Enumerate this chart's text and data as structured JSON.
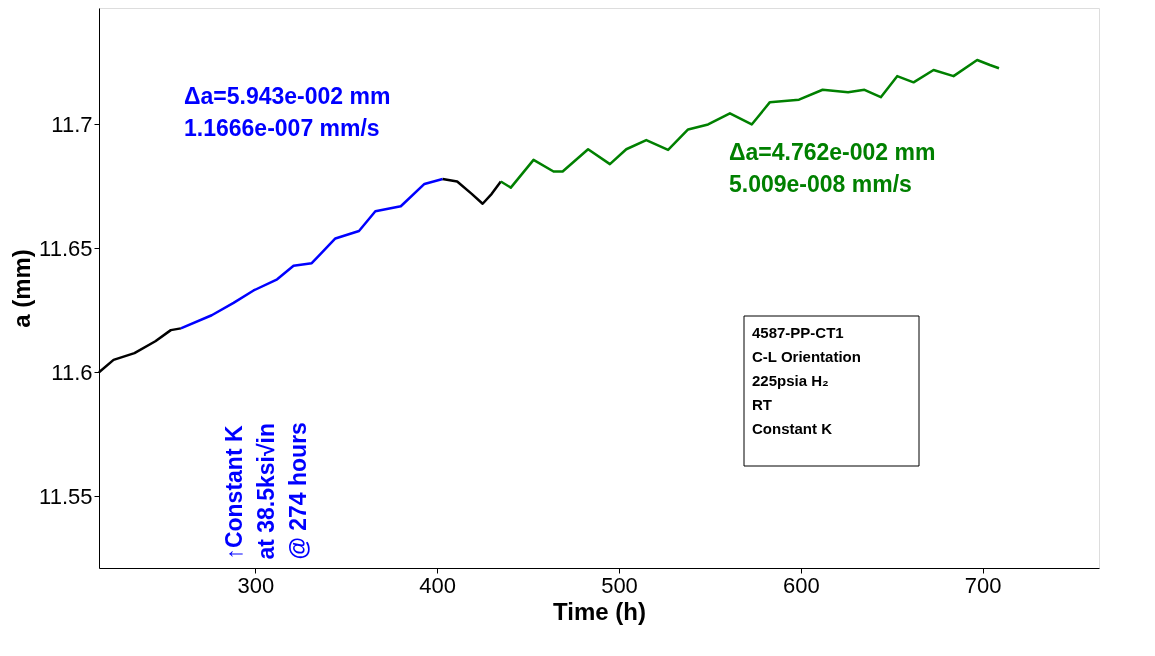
{
  "chart_data": {
    "type": "line",
    "xlabel": "Time (h)",
    "ylabel": "a (mm)",
    "xlim": [
      214,
      764
    ],
    "ylim": [
      11.521,
      11.747
    ],
    "xticks": [
      300,
      400,
      500,
      600,
      700
    ],
    "yticks": [
      11.55,
      11.6,
      11.65,
      11.7
    ],
    "grid": false,
    "legend": false,
    "line_style": "solid",
    "marker": "none",
    "series": [
      {
        "color": "#000000",
        "x": [
          214,
          222,
          233.5,
          245,
          253.5,
          259
        ],
        "values": [
          11.6,
          11.605,
          11.6077,
          11.6125,
          11.617,
          11.6177
        ]
      },
      {
        "color": "#0000ff",
        "x": [
          259,
          276,
          288,
          299,
          312,
          321,
          331,
          344,
          357,
          366,
          380,
          393,
          403
        ],
        "values": [
          11.6177,
          11.623,
          11.628,
          11.633,
          11.6375,
          11.643,
          11.644,
          11.654,
          11.657,
          11.665,
          11.667,
          11.676,
          11.678
        ]
      },
      {
        "color": "#000000",
        "x": [
          403,
          411,
          419,
          425,
          430,
          435
        ],
        "values": [
          11.678,
          11.677,
          11.672,
          11.668,
          11.672,
          11.677
        ]
      },
      {
        "color": "#008000",
        "x": [
          435,
          440.5,
          453,
          464,
          469,
          483,
          495,
          504,
          515,
          527,
          538,
          549,
          561,
          573,
          583,
          599,
          612,
          626,
          635,
          644,
          653,
          662,
          673,
          684,
          697,
          704,
          709
        ],
        "values": [
          11.677,
          11.6745,
          11.6857,
          11.681,
          11.681,
          11.69,
          11.684,
          11.69,
          11.6937,
          11.6897,
          11.698,
          11.7,
          11.7045,
          11.7,
          11.709,
          11.71,
          11.714,
          11.713,
          11.714,
          11.711,
          11.7195,
          11.717,
          11.722,
          11.7195,
          11.726,
          11.724,
          11.7227
        ]
      }
    ],
    "annotations": [
      "Δa=5.943e-002 mm\n1.1666e-007 mm/s",
      "↑Constant K\nat 38.5ksi√in\n@ 274 hours",
      "Δa=4.762e-002 mm\n5.009e-008 mm/s",
      "4587-PP-CT1\nC-L Orientation\n225psia H₂\nRT\nConstant K"
    ]
  }
}
